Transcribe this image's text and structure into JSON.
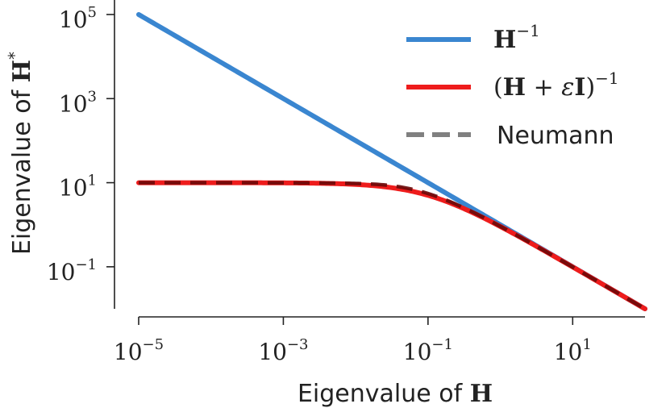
{
  "chart_data": {
    "type": "line",
    "xlabel": "Eigenvalue of",
    "xlabel_symbol": "H",
    "ylabel": "Eigenvalue of",
    "ylabel_symbol": "H",
    "ylabel_sup": "*",
    "x_scale": "log",
    "y_scale": "log",
    "xlim": [
      1e-05,
      100
    ],
    "ylim": [
      0.01,
      100000
    ],
    "x_ticks": [
      {
        "base": "10",
        "exp": "−5",
        "value": 1e-05
      },
      {
        "base": "10",
        "exp": "−3",
        "value": 0.001
      },
      {
        "base": "10",
        "exp": "−1",
        "value": 0.1
      },
      {
        "base": "10",
        "exp": "1",
        "value": 10
      }
    ],
    "y_ticks": [
      {
        "base": "10",
        "exp": "5",
        "value": 100000
      },
      {
        "base": "10",
        "exp": "3",
        "value": 1000
      },
      {
        "base": "10",
        "exp": "1",
        "value": 10
      },
      {
        "base": "10",
        "exp": "−1",
        "value": 0.1
      }
    ],
    "grid": false,
    "legend_position": "top-right",
    "epsilon": 0.1,
    "series": [
      {
        "name": "H^-1",
        "label_parts": {
          "main": "H",
          "sup": "−1"
        },
        "formula": "1/x",
        "color": "#3a86d0",
        "style": "solid",
        "x": [
          1e-05,
          0.0001,
          0.001,
          0.01,
          0.1,
          1,
          10,
          100
        ],
        "y": [
          100000,
          10000,
          1000,
          100,
          10,
          1,
          0.1,
          0.01
        ]
      },
      {
        "name": "(H + εI)^-1",
        "label_parts": {
          "open": "(",
          "h": "H",
          "plus": " + ",
          "eps": "ε",
          "i": "I",
          "close": ")",
          "sup": "−1"
        },
        "formula": "1/(x+0.1)",
        "color": "#ee1c1c",
        "style": "solid",
        "x": [
          1e-05,
          0.0001,
          0.001,
          0.01,
          0.1,
          1,
          10,
          100
        ],
        "y": [
          9.999,
          9.99,
          9.9,
          9.09,
          5.0,
          0.909,
          0.099,
          0.01
        ]
      },
      {
        "name": "Neumann",
        "formula": "neumann-approx",
        "color": "#808080",
        "overlay_color": "#6a0a0a",
        "style": "dashed",
        "x": [
          1e-05,
          0.0001,
          0.001,
          0.01,
          0.1,
          1,
          10,
          100
        ],
        "y": [
          10,
          10,
          9.9,
          9.2,
          5.6,
          0.93,
          0.099,
          0.01
        ]
      }
    ]
  }
}
